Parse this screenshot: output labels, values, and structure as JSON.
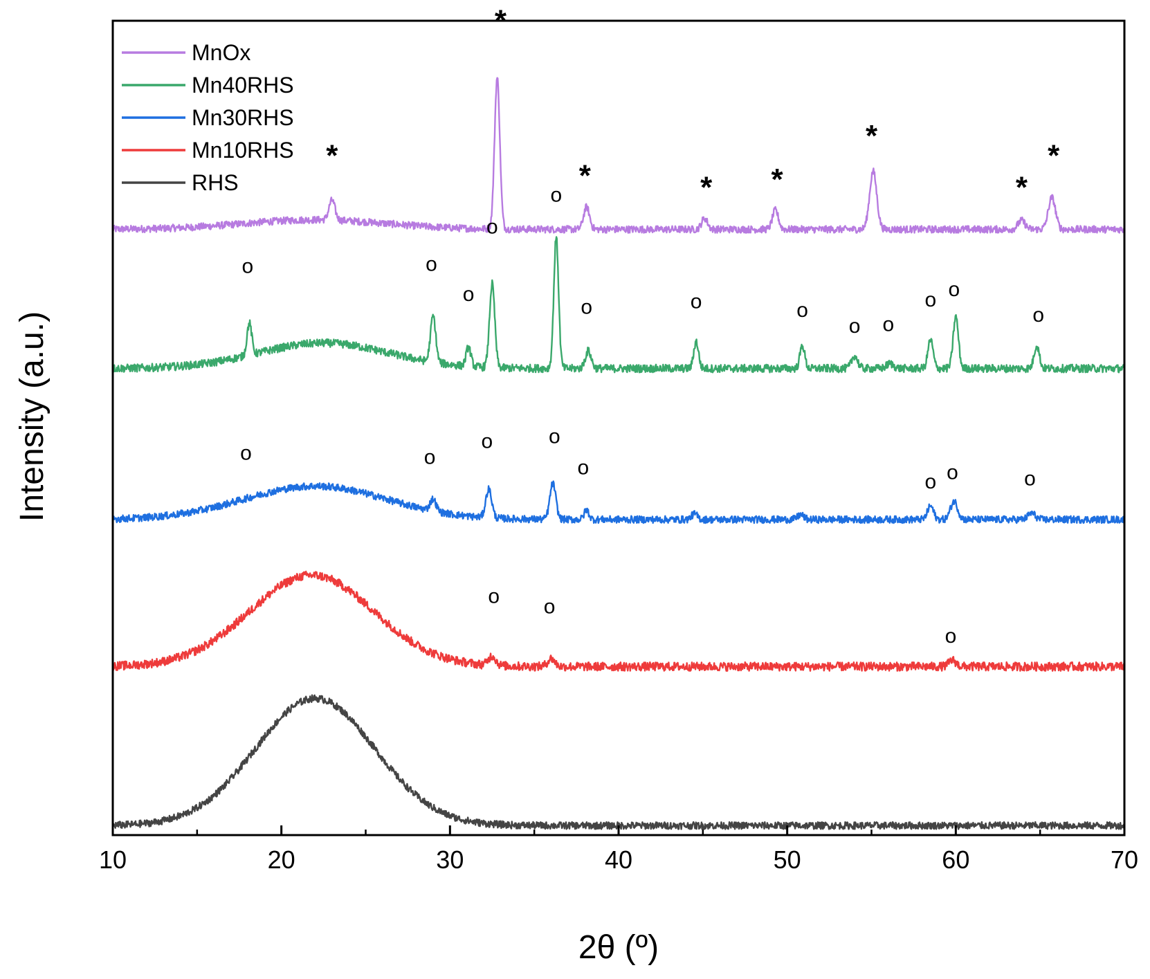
{
  "chart_data": {
    "type": "line",
    "title": "",
    "xlabel": "2θ (º)",
    "ylabel": "Intensity (a.u.)",
    "xlim": [
      10,
      70
    ],
    "ylim": [
      0,
      100
    ],
    "xticks": [
      10,
      20,
      30,
      40,
      50,
      60,
      70
    ],
    "yticks_shown": false,
    "grid": false,
    "legend_position": "top-left",
    "colors": {
      "MnOx": "#b77be0",
      "Mn40RHS": "#3aa86b",
      "Mn30RHS": "#1e6fe0",
      "Mn10RHS": "#ee3b3b",
      "RHS": "#444444"
    },
    "legend": [
      "MnOx",
      "Mn40RHS",
      "Mn30RHS",
      "Mn10RHS",
      "RHS"
    ],
    "series": [
      {
        "name": "MnOx",
        "baseline": 75.5,
        "hump": {
          "center": 22,
          "width": 6,
          "height": 1.2
        },
        "noise": 0.45,
        "peaks": [
          [
            23.0,
            2.5,
            0.25
          ],
          [
            32.8,
            19.0,
            0.22
          ],
          [
            38.1,
            2.8,
            0.25
          ],
          [
            45.1,
            1.4,
            0.25
          ],
          [
            49.3,
            2.4,
            0.25
          ],
          [
            55.1,
            7.3,
            0.3
          ],
          [
            63.9,
            1.1,
            0.3
          ],
          [
            65.7,
            4.0,
            0.3
          ]
        ],
        "markers": [
          {
            "x": 23.0,
            "y": 83.5,
            "label": "*"
          },
          {
            "x": 33.0,
            "y": 100.5,
            "label": "*"
          },
          {
            "x": 38.0,
            "y": 81.0,
            "label": "*"
          },
          {
            "x": 45.2,
            "y": 79.5,
            "label": "*"
          },
          {
            "x": 49.4,
            "y": 80.5,
            "label": "*"
          },
          {
            "x": 55.0,
            "y": 86.0,
            "label": "*"
          },
          {
            "x": 63.9,
            "y": 79.5,
            "label": "*"
          },
          {
            "x": 65.8,
            "y": 83.5,
            "label": "*"
          }
        ]
      },
      {
        "name": "Mn40RHS",
        "baseline": 58.0,
        "hump": {
          "center": 22.5,
          "width": 5.5,
          "height": 3.2
        },
        "noise": 0.5,
        "peaks": [
          [
            18.1,
            4.0,
            0.2
          ],
          [
            29.0,
            5.8,
            0.22
          ],
          [
            31.1,
            2.4,
            0.2
          ],
          [
            32.5,
            10.5,
            0.22
          ],
          [
            36.3,
            16.5,
            0.2
          ],
          [
            38.2,
            2.2,
            0.25
          ],
          [
            44.6,
            3.4,
            0.2
          ],
          [
            50.9,
            2.9,
            0.2
          ],
          [
            54.0,
            1.6,
            0.25
          ],
          [
            56.1,
            0.6,
            0.3
          ],
          [
            58.5,
            3.6,
            0.22
          ],
          [
            60.0,
            6.5,
            0.22
          ],
          [
            64.8,
            2.9,
            0.22
          ]
        ],
        "markers": [
          {
            "x": 18.0,
            "y": 70.0,
            "label": "o"
          },
          {
            "x": 28.9,
            "y": 70.3,
            "label": "o"
          },
          {
            "x": 31.1,
            "y": 66.5,
            "label": "o"
          },
          {
            "x": 32.5,
            "y": 75.0,
            "label": "o"
          },
          {
            "x": 36.3,
            "y": 79.0,
            "label": "o"
          },
          {
            "x": 38.1,
            "y": 64.9,
            "label": "o"
          },
          {
            "x": 44.6,
            "y": 65.6,
            "label": "o"
          },
          {
            "x": 50.9,
            "y": 64.5,
            "label": "o"
          },
          {
            "x": 54.0,
            "y": 62.5,
            "label": "o"
          },
          {
            "x": 56.0,
            "y": 62.7,
            "label": "o"
          },
          {
            "x": 58.5,
            "y": 65.8,
            "label": "o"
          },
          {
            "x": 59.9,
            "y": 67.1,
            "label": "o"
          },
          {
            "x": 64.9,
            "y": 63.9,
            "label": "o"
          }
        ]
      },
      {
        "name": "Mn30RHS",
        "baseline": 39.0,
        "hump": {
          "center": 22.0,
          "width": 6,
          "height": 4.2
        },
        "noise": 0.45,
        "peaks": [
          [
            29.0,
            1.5,
            0.25
          ],
          [
            32.3,
            3.6,
            0.25
          ],
          [
            36.1,
            4.5,
            0.25
          ],
          [
            38.1,
            1.2,
            0.2
          ],
          [
            44.5,
            0.7,
            0.25
          ],
          [
            50.8,
            0.6,
            0.25
          ],
          [
            58.5,
            1.7,
            0.25
          ],
          [
            59.9,
            2.3,
            0.3
          ],
          [
            64.5,
            0.8,
            0.3
          ]
        ],
        "markers": [
          {
            "x": 17.9,
            "y": 46.5,
            "label": "o"
          },
          {
            "x": 28.8,
            "y": 46.0,
            "label": "o"
          },
          {
            "x": 32.2,
            "y": 48.0,
            "label": "o"
          },
          {
            "x": 36.2,
            "y": 48.6,
            "label": "o"
          },
          {
            "x": 37.9,
            "y": 44.7,
            "label": "o"
          },
          {
            "x": 58.5,
            "y": 42.9,
            "label": "o"
          },
          {
            "x": 59.8,
            "y": 44.1,
            "label": "o"
          },
          {
            "x": 64.4,
            "y": 43.3,
            "label": "o"
          }
        ]
      },
      {
        "name": "Mn10RHS",
        "baseline": 20.5,
        "hump": {
          "center": 21.8,
          "width": 5.2,
          "height": 11.5
        },
        "noise": 0.55,
        "peaks": [
          [
            32.5,
            1.2,
            0.3
          ],
          [
            36.0,
            1.0,
            0.3
          ],
          [
            59.8,
            0.8,
            0.3
          ]
        ],
        "markers": [
          {
            "x": 32.6,
            "y": 28.5,
            "label": "o"
          },
          {
            "x": 35.9,
            "y": 27.2,
            "label": "o"
          },
          {
            "x": 59.7,
            "y": 23.5,
            "label": "o"
          }
        ]
      },
      {
        "name": "RHS",
        "baseline": 0.5,
        "hump": {
          "center": 22.0,
          "width": 5.0,
          "height": 16.0
        },
        "noise": 0.45,
        "peaks": [],
        "markers": []
      }
    ]
  }
}
